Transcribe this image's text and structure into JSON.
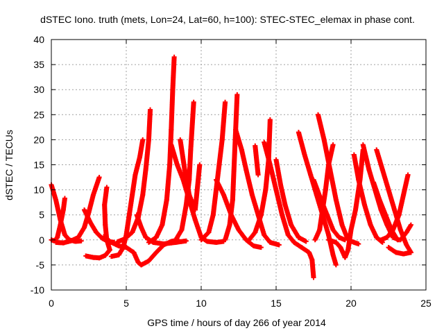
{
  "chart_data": {
    "type": "scatter",
    "title": "dSTEC Iono. truth (mets, Lon=24, Lat=60, h=100): STEC-STEC_elemax in phase cont.",
    "xlabel": "GPS time / hours of day 266 of year 2014",
    "ylabel": "dSTEC  / TECUs",
    "xlim": [
      0,
      25
    ],
    "ylim": [
      -10,
      40
    ],
    "xticks": [
      0,
      5,
      10,
      15,
      20,
      25
    ],
    "yticks": [
      -10,
      -5,
      0,
      5,
      10,
      15,
      20,
      25,
      30,
      35,
      40
    ],
    "xtick_labels": [
      "0",
      "5",
      "10",
      "15",
      "20",
      "25"
    ],
    "ytick_labels": [
      "-10",
      "-5",
      "0",
      "5",
      "10",
      "15",
      "20",
      "25",
      "30",
      "35",
      "40"
    ],
    "grid": true,
    "marker": "plus",
    "series_color": "#ff0000",
    "arcs": [
      [
        [
          0.0,
          11
        ],
        [
          0.3,
          8
        ],
        [
          0.6,
          4
        ],
        [
          0.9,
          1
        ],
        [
          1.2,
          0
        ],
        [
          1.6,
          -0.3
        ],
        [
          2.0,
          -0.2
        ]
      ],
      [
        [
          0.0,
          0
        ],
        [
          0.2,
          -0.2
        ],
        [
          0.4,
          0.5
        ],
        [
          0.6,
          3
        ],
        [
          0.8,
          6
        ],
        [
          0.9,
          8.3
        ]
      ],
      [
        [
          0.3,
          -0.5
        ],
        [
          0.8,
          -0.6
        ],
        [
          1.3,
          -0.2
        ],
        [
          1.8,
          0.5
        ],
        [
          2.2,
          2.5
        ],
        [
          2.5,
          5.5
        ],
        [
          2.8,
          9
        ],
        [
          3.2,
          12.5
        ]
      ],
      [
        [
          2.2,
          6
        ],
        [
          2.6,
          3.5
        ],
        [
          3.0,
          1.5
        ],
        [
          3.4,
          0.3
        ],
        [
          3.8,
          -0.3
        ],
        [
          4.2,
          -0.5
        ]
      ],
      [
        [
          2.3,
          -3.2
        ],
        [
          2.8,
          -3.5
        ],
        [
          3.2,
          -3.6
        ],
        [
          3.6,
          -3.1
        ],
        [
          3.9,
          -2.0
        ],
        [
          3.7,
          0
        ],
        [
          3.6,
          3
        ],
        [
          3.55,
          7
        ],
        [
          3.7,
          10.5
        ]
      ],
      [
        [
          3.5,
          0.7
        ],
        [
          4.0,
          -0.5
        ],
        [
          4.5,
          -1.2
        ],
        [
          5.0,
          -1.5
        ],
        [
          5.5,
          -2.5
        ],
        [
          5.8,
          -4.5
        ],
        [
          6.0,
          -5
        ],
        [
          6.5,
          -4.2
        ],
        [
          7.0,
          -2.5
        ],
        [
          7.5,
          -1
        ],
        [
          8.0,
          -0.3
        ],
        [
          8.5,
          0
        ]
      ],
      [
        [
          4.0,
          -3.3
        ],
        [
          4.5,
          -3.0
        ],
        [
          4.8,
          -1.5
        ],
        [
          5.0,
          1
        ],
        [
          5.2,
          5
        ],
        [
          5.4,
          9
        ],
        [
          5.6,
          13
        ],
        [
          5.9,
          16.5
        ],
        [
          6.1,
          20
        ]
      ],
      [
        [
          5.7,
          5
        ],
        [
          6.0,
          2.5
        ],
        [
          6.3,
          0.5
        ],
        [
          6.8,
          -0.5
        ],
        [
          7.5,
          -0.8
        ],
        [
          8.3,
          -0.5
        ],
        [
          9.0,
          -0.2
        ]
      ],
      [
        [
          4.4,
          -0.4
        ],
        [
          4.9,
          0.2
        ],
        [
          5.4,
          1.5
        ],
        [
          5.8,
          4.5
        ],
        [
          6.1,
          9
        ],
        [
          6.3,
          14
        ],
        [
          6.5,
          20
        ],
        [
          6.6,
          26
        ]
      ],
      [
        [
          6.5,
          -0.5
        ],
        [
          7.0,
          0.5
        ],
        [
          7.4,
          3
        ],
        [
          7.7,
          8
        ],
        [
          7.9,
          15
        ],
        [
          8.0,
          22
        ],
        [
          8.1,
          30
        ],
        [
          8.2,
          36.5
        ]
      ],
      [
        [
          8.3,
          0
        ],
        [
          8.7,
          2
        ],
        [
          9.0,
          7
        ],
        [
          9.2,
          12
        ],
        [
          9.3,
          18
        ],
        [
          9.5,
          27.5
        ]
      ],
      [
        [
          8.0,
          19
        ],
        [
          8.4,
          15
        ],
        [
          8.8,
          12
        ],
        [
          9.2,
          8
        ],
        [
          9.6,
          4
        ],
        [
          10.0,
          0.5
        ],
        [
          10.4,
          -0.3
        ],
        [
          11.0,
          -0.5
        ],
        [
          11.5,
          -0.3
        ]
      ],
      [
        [
          8.6,
          20
        ],
        [
          8.9,
          14
        ],
        [
          9.2,
          9
        ],
        [
          9.6,
          6
        ],
        [
          9.9,
          15
        ]
      ],
      [
        [
          10.0,
          0
        ],
        [
          10.5,
          1.5
        ],
        [
          10.8,
          5
        ],
        [
          11.0,
          10
        ],
        [
          11.2,
          15
        ],
        [
          11.4,
          20
        ],
        [
          11.6,
          27.5
        ]
      ],
      [
        [
          11.0,
          12
        ],
        [
          11.5,
          9
        ],
        [
          12.0,
          5
        ],
        [
          12.5,
          2
        ],
        [
          13.0,
          0
        ],
        [
          13.5,
          -1.2
        ],
        [
          14.0,
          -1.5
        ]
      ],
      [
        [
          11.6,
          0
        ],
        [
          11.9,
          3
        ],
        [
          12.1,
          8
        ],
        [
          12.2,
          15
        ],
        [
          12.3,
          22
        ],
        [
          12.4,
          29
        ]
      ],
      [
        [
          12.3,
          22
        ],
        [
          12.7,
          18
        ],
        [
          13.0,
          14
        ],
        [
          13.4,
          9
        ],
        [
          13.8,
          5
        ],
        [
          14.2,
          1
        ],
        [
          14.6,
          -0.5
        ],
        [
          15.2,
          -1
        ]
      ],
      [
        [
          13.2,
          0
        ],
        [
          13.6,
          1.5
        ],
        [
          14.0,
          5
        ],
        [
          14.3,
          10
        ],
        [
          14.5,
          16
        ],
        [
          14.6,
          24
        ]
      ],
      [
        [
          13.6,
          18.8
        ],
        [
          13.8,
          13
        ]
      ],
      [
        [
          14.2,
          19.5
        ],
        [
          14.6,
          15
        ],
        [
          15.0,
          10
        ],
        [
          15.4,
          5
        ],
        [
          15.8,
          1
        ],
        [
          16.2,
          -0.5
        ],
        [
          16.7,
          -1.5
        ],
        [
          17.2,
          -2.5
        ],
        [
          17.4,
          -4
        ],
        [
          17.5,
          -7.5
        ]
      ],
      [
        [
          15.0,
          16
        ],
        [
          15.3,
          11
        ],
        [
          15.6,
          7
        ],
        [
          16.0,
          3
        ],
        [
          16.5,
          0.5
        ],
        [
          17.0,
          -0.3
        ]
      ],
      [
        [
          16.5,
          21.5
        ],
        [
          16.9,
          17
        ],
        [
          17.3,
          13
        ],
        [
          17.7,
          9
        ],
        [
          18.1,
          5
        ],
        [
          18.5,
          1
        ],
        [
          18.8,
          -3
        ],
        [
          19.0,
          -5
        ]
      ],
      [
        [
          17.6,
          0
        ],
        [
          17.9,
          2
        ],
        [
          18.1,
          6
        ],
        [
          18.3,
          10
        ],
        [
          18.5,
          15
        ],
        [
          18.8,
          19
        ]
      ],
      [
        [
          17.5,
          12
        ],
        [
          18.0,
          8
        ],
        [
          18.4,
          5
        ],
        [
          18.8,
          2
        ],
        [
          19.2,
          0.5
        ],
        [
          19.6,
          0
        ]
      ],
      [
        [
          17.8,
          25
        ],
        [
          18.2,
          20
        ],
        [
          18.6,
          14
        ],
        [
          19.0,
          8
        ],
        [
          19.4,
          3
        ],
        [
          19.8,
          0
        ],
        [
          20.2,
          -0.5
        ],
        [
          20.5,
          -0.8
        ]
      ],
      [
        [
          18.5,
          0
        ],
        [
          19.0,
          -0.5
        ],
        [
          19.3,
          -1.5
        ],
        [
          19.6,
          -3.5
        ],
        [
          19.8,
          -2
        ],
        [
          20.0,
          2
        ],
        [
          20.3,
          6
        ],
        [
          20.6,
          12
        ],
        [
          20.8,
          18
        ]
      ],
      [
        [
          20.2,
          17
        ],
        [
          20.5,
          12
        ],
        [
          20.9,
          7
        ],
        [
          21.3,
          3
        ],
        [
          21.7,
          0.5
        ],
        [
          22.1,
          -0.5
        ]
      ],
      [
        [
          20.8,
          19
        ],
        [
          21.2,
          14
        ],
        [
          21.6,
          10
        ],
        [
          22.0,
          6
        ],
        [
          22.4,
          3
        ],
        [
          22.8,
          0.5
        ],
        [
          23.2,
          0
        ]
      ],
      [
        [
          21.5,
          11.5
        ],
        [
          21.9,
          8
        ],
        [
          22.3,
          5
        ],
        [
          22.7,
          2
        ],
        [
          23.1,
          0
        ]
      ],
      [
        [
          21.7,
          18
        ],
        [
          22.1,
          14
        ],
        [
          22.5,
          10
        ],
        [
          22.9,
          6
        ],
        [
          23.3,
          2
        ],
        [
          23.7,
          -1
        ],
        [
          24.0,
          -2.5
        ]
      ],
      [
        [
          22.0,
          0
        ],
        [
          22.4,
          0.5
        ],
        [
          22.8,
          2
        ],
        [
          23.2,
          5
        ],
        [
          23.5,
          9
        ],
        [
          23.8,
          13
        ]
      ],
      [
        [
          22.5,
          -1.5
        ],
        [
          23.0,
          -2.5
        ],
        [
          23.5,
          -2.8
        ],
        [
          24.0,
          -2.5
        ]
      ],
      [
        [
          23.3,
          0
        ],
        [
          23.7,
          1.5
        ],
        [
          24.0,
          3
        ]
      ]
    ]
  }
}
